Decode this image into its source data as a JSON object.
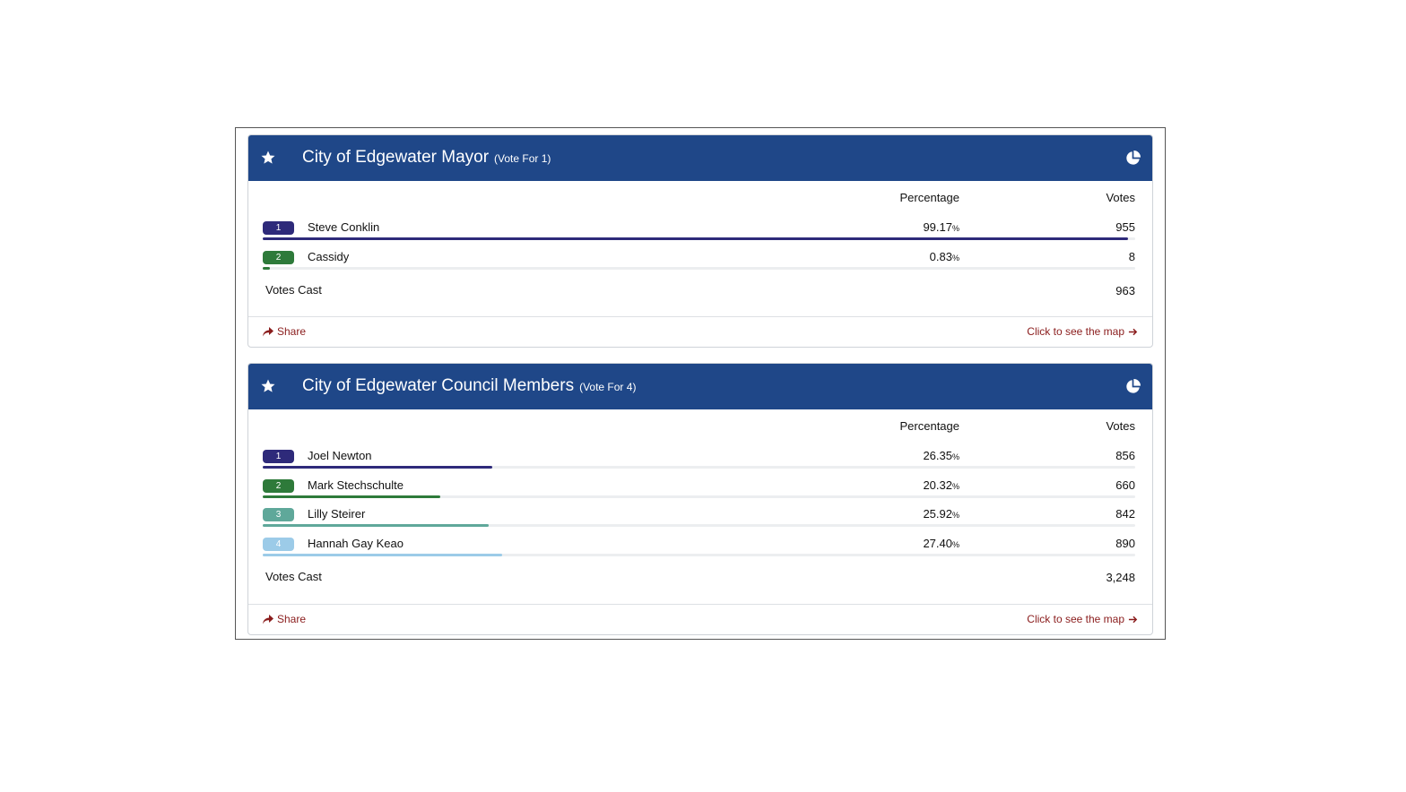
{
  "header_columns": {
    "percentage": "Percentage",
    "votes": "Votes"
  },
  "races": [
    {
      "title": "City of Edgewater Mayor",
      "vote_for": "(Vote For 1)",
      "candidates": [
        {
          "rank": "1",
          "name": "Steve Conklin",
          "percent": "99.17",
          "percent_value": 99.17,
          "votes": "955",
          "color": "#2e2a7a"
        },
        {
          "rank": "2",
          "name": "Cassidy",
          "percent": "0.83",
          "percent_value": 0.83,
          "votes": "8",
          "color": "#2e7a3a"
        }
      ],
      "votes_cast_label": "Votes Cast",
      "votes_cast": "963",
      "share_label": "Share",
      "map_label": "Click to see the map"
    },
    {
      "title": "City of Edgewater Council Members",
      "vote_for": "(Vote For 4)",
      "candidates": [
        {
          "rank": "1",
          "name": "Joel Newton",
          "percent": "26.35",
          "percent_value": 26.35,
          "votes": "856",
          "color": "#2e2a7a"
        },
        {
          "rank": "2",
          "name": "Mark Stechschulte",
          "percent": "20.32",
          "percent_value": 20.32,
          "votes": "660",
          "color": "#2e7a3a"
        },
        {
          "rank": "3",
          "name": "Lilly Steirer",
          "percent": "25.92",
          "percent_value": 25.92,
          "votes": "842",
          "color": "#5fa89a"
        },
        {
          "rank": "4",
          "name": "Hannah Gay Keao",
          "percent": "27.40",
          "percent_value": 27.4,
          "votes": "890",
          "color": "#9ccbe8"
        }
      ],
      "votes_cast_label": "Votes Cast",
      "votes_cast": "3,248",
      "share_label": "Share",
      "map_label": "Click to see the map"
    }
  ],
  "percent_sign": "%",
  "icons": {
    "star": "star-icon",
    "pie": "pie-chart-icon",
    "share": "share-icon",
    "arrow": "arrow-right-icon"
  }
}
